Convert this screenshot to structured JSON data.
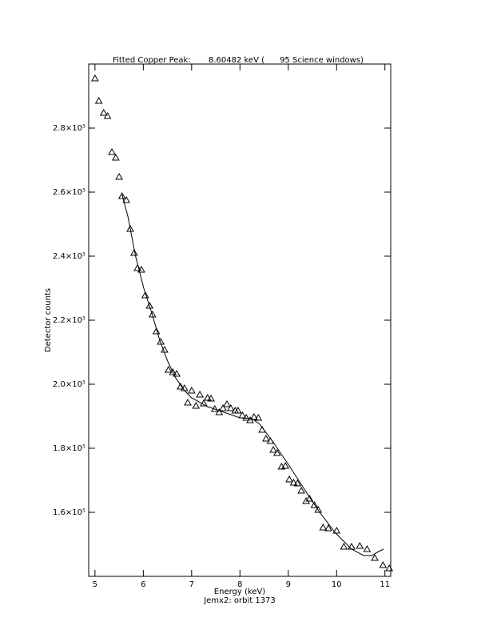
{
  "chart_data": {
    "type": "scatter",
    "title": "Fitted Copper Peak:       8.60482 keV (      95 Science windows)",
    "x_label": "Energy (keV)",
    "y_label": "Detector counts",
    "subtitle": "Jemx2: orbit 1373",
    "xlim": [
      4.87,
      11.12
    ],
    "ylim": [
      140000,
      300000
    ],
    "xticks": [
      5,
      6,
      7,
      8,
      9,
      10,
      11
    ],
    "yticks": [
      {
        "value": 160000,
        "label": "1.6×10⁵"
      },
      {
        "value": 180000,
        "label": "1.8×10⁵"
      },
      {
        "value": 200000,
        "label": "2.0×10⁵"
      },
      {
        "value": 220000,
        "label": "2.2×10⁵"
      },
      {
        "value": 240000,
        "label": "2.4×10⁵"
      },
      {
        "value": 260000,
        "label": "2.6×10⁵"
      },
      {
        "value": 280000,
        "label": "2.8×10⁵"
      }
    ],
    "color": "#000000",
    "series": [
      {
        "marker": "triangle",
        "x": [
          5.0,
          5.08,
          5.18,
          5.26,
          5.35,
          5.43,
          5.5,
          5.56,
          5.65,
          5.73,
          5.81,
          5.88,
          5.96,
          6.04,
          6.13,
          6.19,
          6.27,
          6.36,
          6.44,
          6.52,
          6.61,
          6.69,
          6.77,
          6.85,
          6.92,
          7.0,
          7.09,
          7.17,
          7.25,
          7.33,
          7.4,
          7.48,
          7.57,
          7.65,
          7.73,
          7.81,
          7.9,
          7.96,
          8.05,
          8.13,
          8.21,
          8.29,
          8.38,
          8.46,
          8.54,
          8.63,
          8.69,
          8.77,
          8.86,
          8.94,
          9.02,
          9.11,
          9.19,
          9.27,
          9.37,
          9.44,
          9.54,
          9.62,
          9.72,
          9.83,
          10.0,
          10.15,
          10.31,
          10.48,
          10.63,
          10.79,
          10.96,
          11.09
        ],
        "values": [
          295500,
          288500,
          284750,
          283750,
          272500,
          270750,
          264750,
          258750,
          257500,
          248500,
          241000,
          236250,
          235750,
          227750,
          224500,
          221750,
          216500,
          213250,
          210750,
          204500,
          203750,
          203250,
          199250,
          198750,
          194250,
          198000,
          193250,
          196750,
          194000,
          195750,
          195500,
          192250,
          191250,
          192500,
          193750,
          192500,
          191750,
          191750,
          190250,
          189500,
          188750,
          189750,
          189500,
          185750,
          183000,
          182250,
          179500,
          178500,
          174250,
          174500,
          170250,
          169250,
          169000,
          166750,
          163500,
          164250,
          162250,
          160750,
          155250,
          155000,
          154250,
          149250,
          149250,
          149500,
          148500,
          145750,
          143500,
          142500
        ]
      },
      {
        "marker": "line",
        "x": [
          5.56,
          5.68,
          5.84,
          6.01,
          6.18,
          6.34,
          6.51,
          6.67,
          6.84,
          7.0,
          7.33,
          7.67,
          8.0,
          8.25,
          8.41,
          8.66,
          9.0,
          9.32,
          9.65,
          9.98,
          10.31,
          10.56,
          10.73,
          10.84,
          10.97
        ],
        "values": [
          259250,
          252500,
          240000,
          230000,
          222000,
          213750,
          207000,
          202000,
          198250,
          195750,
          193000,
          191250,
          189500,
          189250,
          187500,
          182500,
          175000,
          167500,
          160000,
          153500,
          148500,
          146500,
          146500,
          147500,
          148500
        ]
      }
    ]
  }
}
